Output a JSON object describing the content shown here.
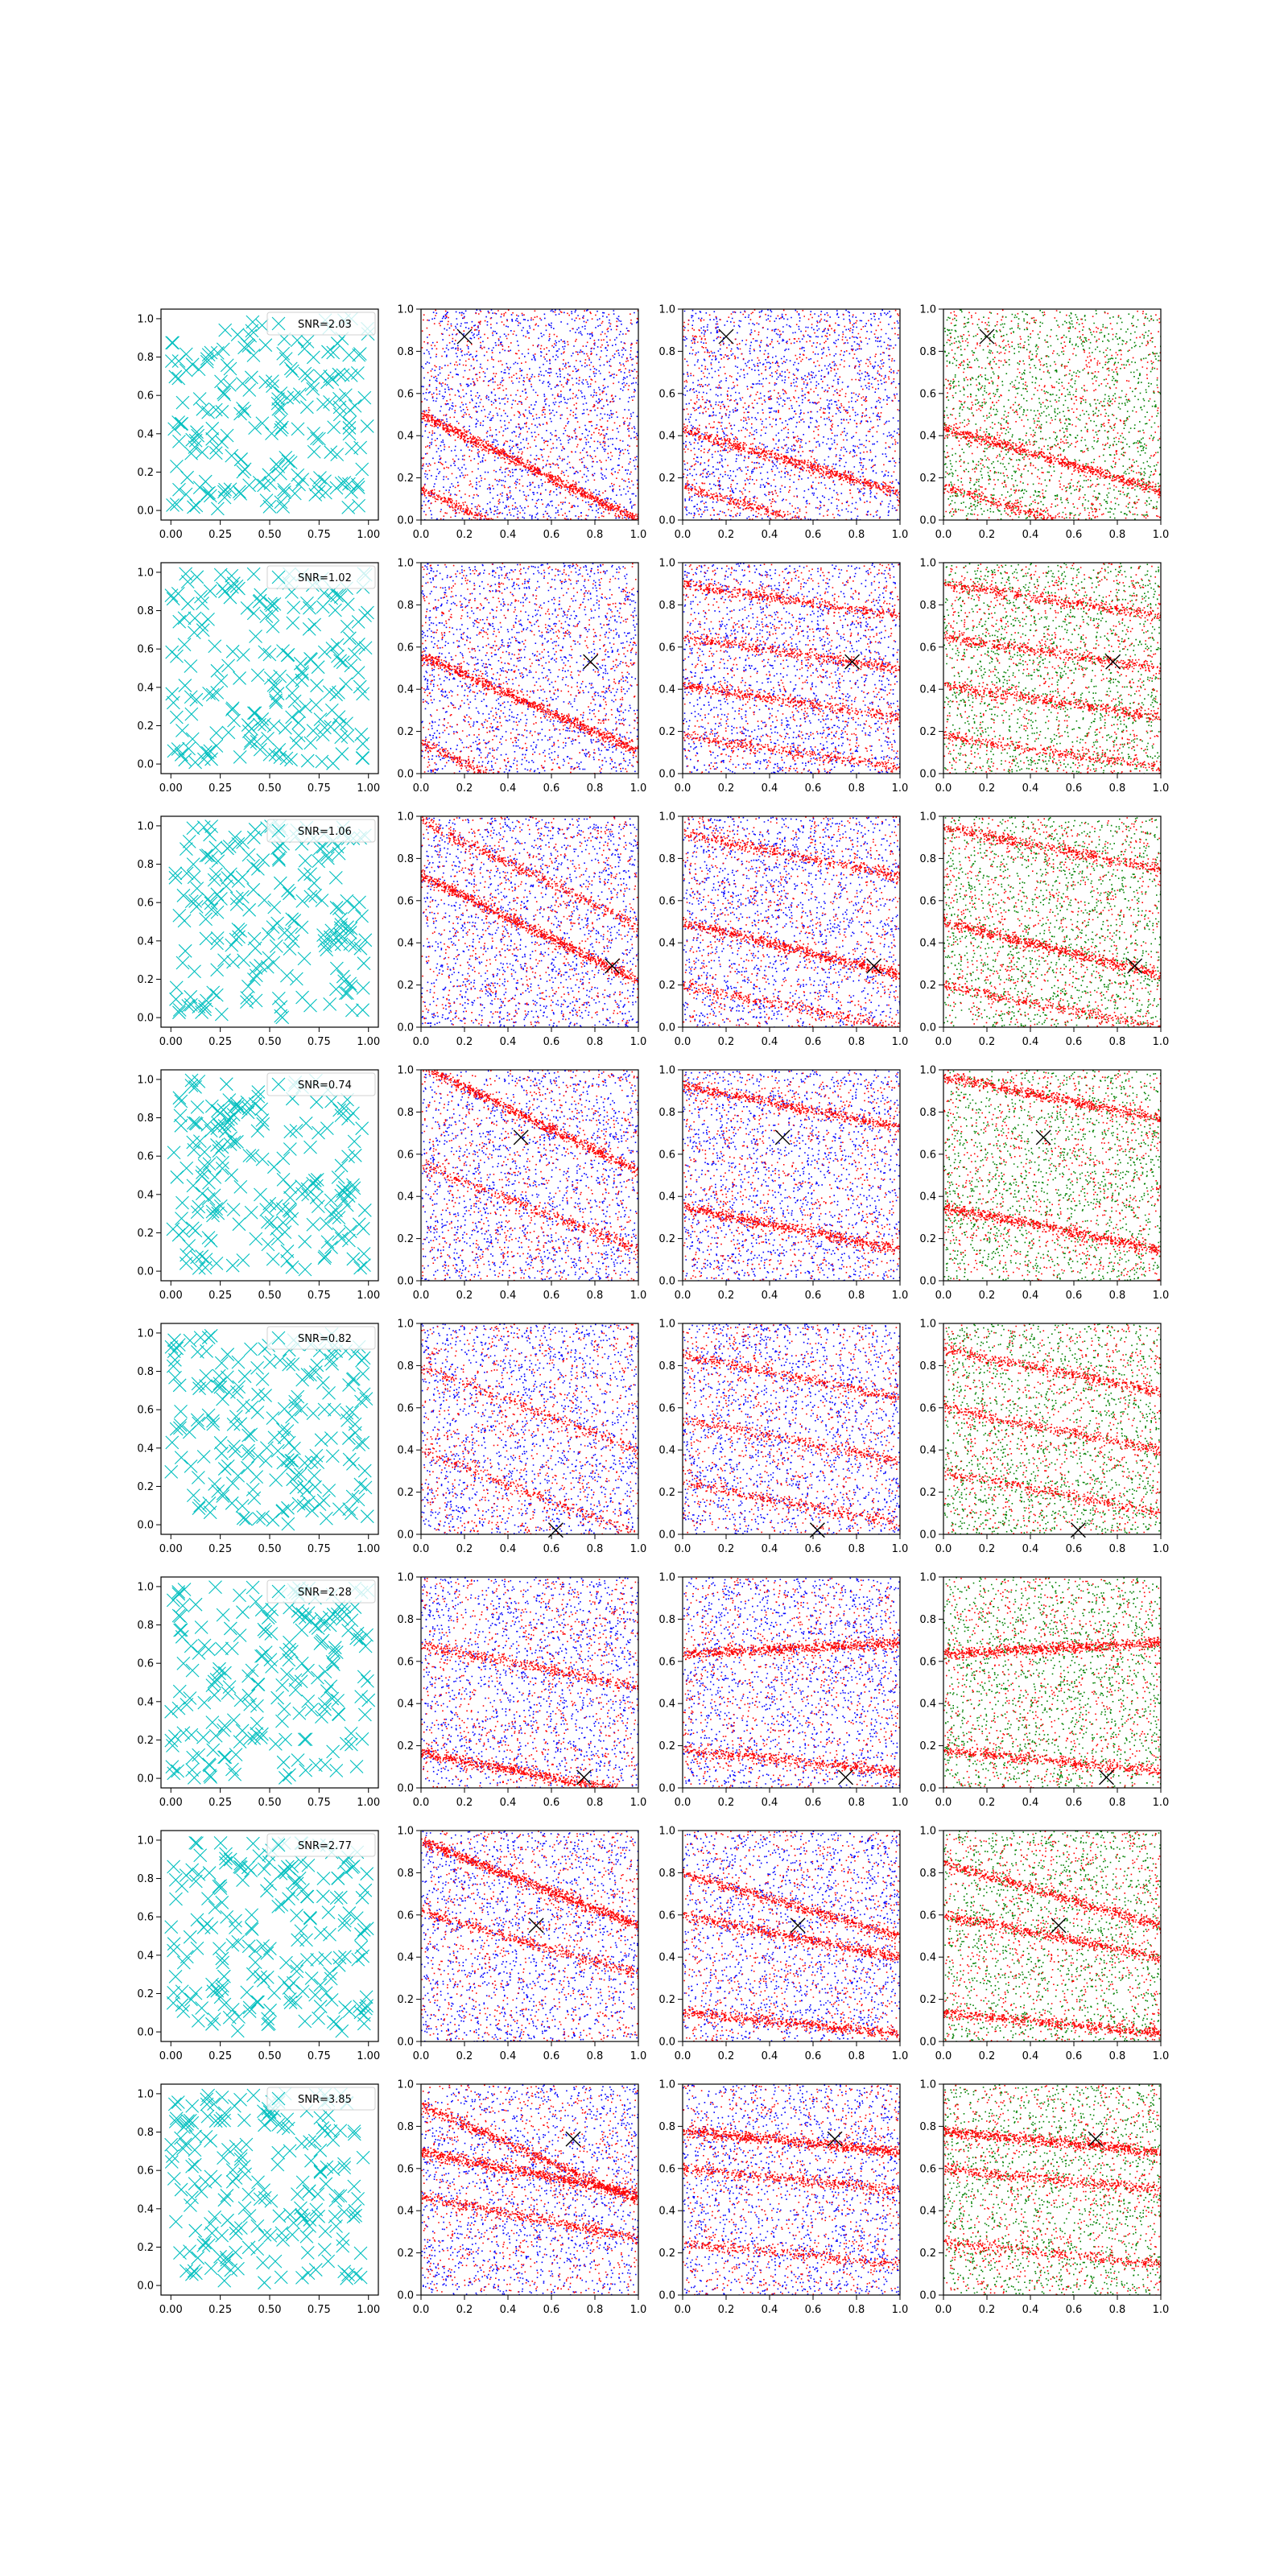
{
  "figure": {
    "layout": "8 rows x 4 columns grid of scatter panels",
    "colors": {
      "cross_markers": "#00bfbf",
      "series_red": "#ff0000",
      "series_blue": "#0000ff",
      "series_green": "#008000",
      "target_marker": "#000000",
      "axes": "#000000",
      "background": "#ffffff"
    }
  },
  "chart_data": {
    "type": "scatter",
    "col0": {
      "xlim": [
        -0.05,
        1.05
      ],
      "ylim": [
        -0.05,
        1.05
      ],
      "xticks": [
        0.0,
        0.25,
        0.5,
        0.75,
        1.0
      ],
      "xtick_labels": [
        "0.00",
        "0.25",
        "0.50",
        "0.75",
        "1.00"
      ],
      "yticks": [
        0.0,
        0.2,
        0.4,
        0.6,
        0.8,
        1.0
      ],
      "ytick_labels": [
        "0.0",
        "0.2",
        "0.4",
        "0.6",
        "0.8",
        "1.0"
      ],
      "marker": "x",
      "approx_points_per_panel": 200,
      "legend_position": "top-right"
    },
    "cols123": {
      "xlim": [
        0.0,
        1.0
      ],
      "ylim": [
        0.0,
        1.0
      ],
      "xticks": [
        0.0,
        0.2,
        0.4,
        0.6,
        0.8,
        1.0
      ],
      "xtick_labels": [
        "0.0",
        "0.2",
        "0.4",
        "0.6",
        "0.8",
        "1.0"
      ],
      "yticks": [
        0.0,
        0.2,
        0.4,
        0.6,
        0.8,
        1.0
      ],
      "ytick_labels": [
        "0.0",
        "0.2",
        "0.4",
        "0.6",
        "0.8",
        "1.0"
      ],
      "column_series_colors": [
        [
          "red",
          "blue"
        ],
        [
          "red",
          "blue"
        ],
        [
          "red",
          "green"
        ]
      ],
      "marker": "dot"
    },
    "rows": [
      {
        "legend": "SNR=2.03",
        "target": [
          0.2,
          0.87
        ]
      },
      {
        "legend": "SNR=1.02",
        "target": [
          0.78,
          0.53
        ]
      },
      {
        "legend": "SNR=1.06",
        "target": [
          0.88,
          0.29
        ]
      },
      {
        "legend": "SNR=0.74",
        "target": [
          0.46,
          0.68
        ]
      },
      {
        "legend": "SNR=0.82",
        "target": [
          0.62,
          0.02
        ]
      },
      {
        "legend": "SNR=2.28",
        "target": [
          0.75,
          0.05
        ]
      },
      {
        "legend": "SNR=2.77",
        "target": [
          0.53,
          0.55
        ]
      },
      {
        "legend": "SNR=3.85",
        "target": [
          0.7,
          0.74
        ]
      }
    ],
    "red_band_structure": [
      {
        "col1": [
          {
            "y0": 0.5,
            "slope": -0.5,
            "strength": 1.6
          },
          {
            "y0": 0.15,
            "slope": -0.5,
            "strength": 1
          }
        ],
        "col2": [
          {
            "y0": 0.43,
            "slope": -0.3,
            "strength": 1.2
          },
          {
            "y0": 0.16,
            "slope": -0.3,
            "strength": 0.8
          }
        ],
        "col3": [
          {
            "y0": 0.44,
            "slope": -0.3,
            "strength": 1.2
          },
          {
            "y0": 0.16,
            "slope": -0.3,
            "strength": 0.8
          }
        ]
      },
      {
        "col1": [
          {
            "y0": 0.56,
            "slope": -0.45,
            "strength": 1.5
          },
          {
            "y0": 0.15,
            "slope": -0.5,
            "strength": 1
          }
        ],
        "col2": [
          {
            "y0": 0.9,
            "slope": -0.15,
            "strength": 0.8
          },
          {
            "y0": 0.65,
            "slope": -0.15,
            "strength": 0.8
          },
          {
            "y0": 0.42,
            "slope": -0.15,
            "strength": 0.8
          },
          {
            "y0": 0.18,
            "slope": -0.15,
            "strength": 0.6
          }
        ],
        "col3": [
          {
            "y0": 0.9,
            "slope": -0.15,
            "strength": 0.8
          },
          {
            "y0": 0.65,
            "slope": -0.15,
            "strength": 0.8
          },
          {
            "y0": 0.42,
            "slope": -0.15,
            "strength": 0.8
          },
          {
            "y0": 0.18,
            "slope": -0.15,
            "strength": 0.6
          }
        ]
      },
      {
        "col1": [
          {
            "y0": 0.72,
            "slope": -0.5,
            "strength": 1.6
          },
          {
            "y0": 0.98,
            "slope": -0.5,
            "strength": 0.8
          }
        ],
        "col2": [
          {
            "y0": 0.92,
            "slope": -0.2,
            "strength": 0.8
          },
          {
            "y0": 0.5,
            "slope": -0.25,
            "strength": 1.2
          },
          {
            "y0": 0.2,
            "slope": -0.2,
            "strength": 0.6
          }
        ],
        "col3": [
          {
            "y0": 0.95,
            "slope": -0.2,
            "strength": 0.9
          },
          {
            "y0": 0.5,
            "slope": -0.25,
            "strength": 1.2
          },
          {
            "y0": 0.2,
            "slope": -0.2,
            "strength": 0.6
          }
        ]
      },
      {
        "col1": [
          {
            "y0": 1.02,
            "slope": -0.5,
            "strength": 1.4
          },
          {
            "y0": 0.55,
            "slope": -0.4,
            "strength": 0.7
          }
        ],
        "col2": [
          {
            "y0": 0.93,
            "slope": -0.2,
            "strength": 1
          },
          {
            "y0": 0.35,
            "slope": -0.2,
            "strength": 1.2
          }
        ],
        "col3": [
          {
            "y0": 0.97,
            "slope": -0.2,
            "strength": 1.1
          },
          {
            "y0": 0.35,
            "slope": -0.2,
            "strength": 1.2
          }
        ]
      },
      {
        "col1": [
          {
            "y0": 0.8,
            "slope": -0.4,
            "strength": 0.5
          },
          {
            "y0": 0.4,
            "slope": -0.4,
            "strength": 0.5
          }
        ],
        "col2": [
          {
            "y0": 0.85,
            "slope": -0.2,
            "strength": 0.7
          },
          {
            "y0": 0.55,
            "slope": -0.2,
            "strength": 0.6
          },
          {
            "y0": 0.25,
            "slope": -0.2,
            "strength": 0.6
          }
        ],
        "col3": [
          {
            "y0": 0.88,
            "slope": -0.2,
            "strength": 0.8
          },
          {
            "y0": 0.6,
            "slope": -0.2,
            "strength": 0.7
          },
          {
            "y0": 0.3,
            "slope": -0.2,
            "strength": 0.6
          }
        ]
      },
      {
        "col1": [
          {
            "y0": 0.17,
            "slope": -0.2,
            "strength": 1.3
          },
          {
            "y0": 0.68,
            "slope": -0.2,
            "strength": 0.8
          }
        ],
        "col2": [
          {
            "y0": 0.64,
            "slope": 0.05,
            "strength": 1.3
          },
          {
            "y0": 0.18,
            "slope": -0.1,
            "strength": 0.9
          }
        ],
        "col3": [
          {
            "y0": 0.64,
            "slope": 0.05,
            "strength": 1.3
          },
          {
            "y0": 0.18,
            "slope": -0.1,
            "strength": 0.9
          }
        ]
      },
      {
        "col1": [
          {
            "y0": 0.95,
            "slope": -0.4,
            "strength": 1.6
          },
          {
            "y0": 0.62,
            "slope": -0.3,
            "strength": 0.8
          }
        ],
        "col2": [
          {
            "y0": 0.8,
            "slope": -0.3,
            "strength": 1
          },
          {
            "y0": 0.6,
            "slope": -0.2,
            "strength": 1
          },
          {
            "y0": 0.14,
            "slope": -0.1,
            "strength": 1
          }
        ],
        "col3": [
          {
            "y0": 0.85,
            "slope": -0.3,
            "strength": 1
          },
          {
            "y0": 0.6,
            "slope": -0.2,
            "strength": 1
          },
          {
            "y0": 0.14,
            "slope": -0.1,
            "strength": 1
          }
        ]
      },
      {
        "col1": [
          {
            "y0": 0.9,
            "slope": -0.45,
            "strength": 1.2
          },
          {
            "y0": 0.68,
            "slope": -0.2,
            "strength": 1.4
          },
          {
            "y0": 0.47,
            "slope": -0.2,
            "strength": 0.9
          }
        ],
        "col2": [
          {
            "y0": 0.78,
            "slope": -0.1,
            "strength": 1.4
          },
          {
            "y0": 0.6,
            "slope": -0.1,
            "strength": 0.8
          },
          {
            "y0": 0.25,
            "slope": -0.1,
            "strength": 0.6
          }
        ],
        "col3": [
          {
            "y0": 0.78,
            "slope": -0.1,
            "strength": 1.4
          },
          {
            "y0": 0.6,
            "slope": -0.1,
            "strength": 0.8
          },
          {
            "y0": 0.25,
            "slope": -0.1,
            "strength": 0.6
          }
        ]
      }
    ]
  }
}
